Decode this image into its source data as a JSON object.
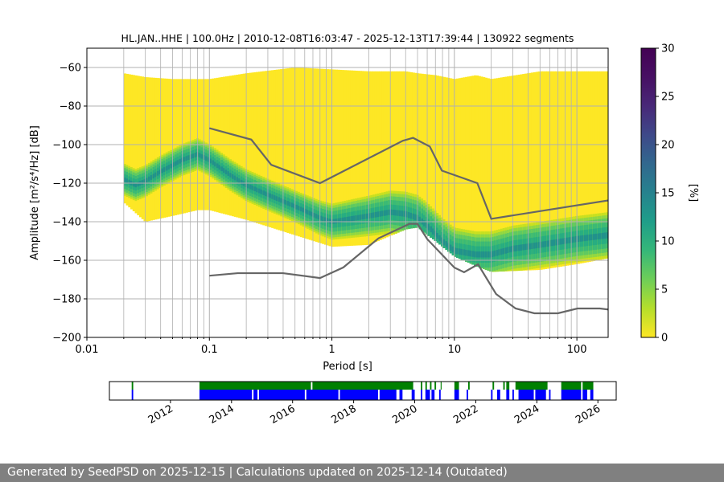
{
  "chart_data": [
    {
      "type": "heatmap",
      "title": "HL.JAN..HHE | 100.0Hz | 2010-12-08T16:03:47 - 2025-12-13T17:39:44 | 130922 segments",
      "xlabel": "Period [s]",
      "ylabel": "Amplitude [m²/s⁴/Hz] [dB]",
      "x_scale": "log",
      "xlim": [
        0.01,
        180
      ],
      "ylim": [
        -200,
        -50
      ],
      "x_ticks": [
        0.01,
        0.1,
        1,
        10,
        100
      ],
      "x_tick_labels": [
        "0.01",
        "0.1",
        "1",
        "10",
        "100"
      ],
      "y_ticks": [
        -60,
        -80,
        -100,
        -120,
        -140,
        -160,
        -180,
        -200
      ],
      "y_tick_labels": [
        "−60",
        "−80",
        "−100",
        "−120",
        "−140",
        "−160",
        "−180",
        "−200"
      ],
      "grid": true,
      "density_envelope": {
        "period": [
          0.02,
          0.03,
          0.05,
          0.08,
          0.1,
          0.2,
          0.5,
          1,
          2,
          4,
          5,
          7,
          10,
          15,
          20,
          50,
          100,
          180
        ],
        "upper_db": [
          -63,
          -65,
          -66,
          -66,
          -66,
          -63,
          -60,
          -61,
          -62,
          -62,
          -63,
          -64,
          -66,
          -64,
          -66,
          -62,
          -62,
          -62
        ],
        "lower_db": [
          -130,
          -140,
          -137,
          -134,
          -134,
          -139,
          -147,
          -153,
          -152,
          -144,
          -143,
          -150,
          -158,
          -163,
          -166,
          -165,
          -162,
          -159
        ]
      },
      "mode": {
        "period": [
          0.02,
          0.025,
          0.03,
          0.04,
          0.06,
          0.08,
          0.1,
          0.15,
          0.2,
          0.3,
          0.5,
          0.8,
          1,
          2,
          3,
          4,
          5,
          6,
          8,
          10,
          15,
          20,
          30,
          50,
          100,
          180
        ],
        "db": [
          -118,
          -121,
          -119,
          -114,
          -108,
          -105,
          -108,
          -116,
          -121,
          -126,
          -132,
          -138,
          -140,
          -137,
          -135,
          -136,
          -138,
          -142,
          -150,
          -155,
          -157,
          -157,
          -154,
          -152,
          -149,
          -147
        ]
      },
      "noise_models": [
        {
          "period": [
            0.1,
            0.22,
            0.32,
            0.8,
            3.8,
            4.6,
            6.3,
            7.9,
            15.4,
            20,
            354.8
          ],
          "db": [
            -91.5,
            -97.4,
            -110.5,
            -120,
            -98,
            -96.5,
            -101,
            -113.5,
            -120,
            -138.5,
            -126
          ]
        },
        {
          "period": [
            0.1,
            0.17,
            0.4,
            0.8,
            1.24,
            2.4,
            4.3,
            5,
            6,
            10,
            12,
            15.6,
            21.9,
            31.6,
            45,
            70,
            101,
            154,
            328.6
          ],
          "db": [
            -168,
            -166.7,
            -166.7,
            -169.2,
            -163.7,
            -148.6,
            -141.1,
            -141.1,
            -149,
            -163.8,
            -166.2,
            -162.1,
            -177.5,
            -185,
            -187.5,
            -187.5,
            -185,
            -185,
            -187.5
          ]
        }
      ],
      "colorbar": {
        "label": "[%]",
        "range": [
          0,
          30
        ],
        "ticks": [
          0,
          5,
          10,
          15,
          20,
          25,
          30
        ],
        "tick_labels": [
          "0",
          "5",
          "10",
          "15",
          "20",
          "25",
          "30"
        ],
        "colormap": "viridis_r"
      }
    },
    {
      "type": "timeline",
      "x_ticks": [
        "2012",
        "2014",
        "2016",
        "2018",
        "2020",
        "2022",
        "2024",
        "2026"
      ],
      "xlim": [
        2010.0,
        2026.6
      ],
      "data_coverage_color": "#0000ff",
      "psd_coverage_color": "#008000",
      "data_coverage": [
        [
          2010.73,
          2010.78
        ],
        [
          2012.95,
          2014.67
        ],
        [
          2014.72,
          2014.85
        ],
        [
          2014.9,
          2016.4
        ],
        [
          2016.45,
          2017.5
        ],
        [
          2017.55,
          2018.8
        ],
        [
          2018.85,
          2019.4
        ],
        [
          2019.5,
          2019.6
        ],
        [
          2019.9,
          2020.0
        ],
        [
          2020.2,
          2020.25
        ],
        [
          2020.35,
          2020.5
        ],
        [
          2020.55,
          2020.65
        ],
        [
          2020.8,
          2020.85
        ],
        [
          2021.3,
          2021.45
        ],
        [
          2021.7,
          2021.75
        ],
        [
          2022.5,
          2022.55
        ],
        [
          2022.7,
          2022.8
        ],
        [
          2023.0,
          2023.1
        ],
        [
          2023.2,
          2023.25
        ],
        [
          2023.4,
          2023.9
        ],
        [
          2023.95,
          2024.3
        ],
        [
          2024.4,
          2024.45
        ],
        [
          2024.8,
          2025.45
        ],
        [
          2025.5,
          2025.65
        ],
        [
          2025.75,
          2025.85
        ]
      ],
      "psd_coverage": [
        [
          2010.73,
          2010.78
        ],
        [
          2012.95,
          2016.6
        ],
        [
          2016.65,
          2019.95
        ],
        [
          2020.2,
          2020.25
        ],
        [
          2020.35,
          2020.4
        ],
        [
          2020.5,
          2020.55
        ],
        [
          2020.65,
          2020.7
        ],
        [
          2020.85,
          2020.88
        ],
        [
          2021.3,
          2021.45
        ],
        [
          2021.75,
          2021.8
        ],
        [
          2022.55,
          2022.6
        ],
        [
          2022.9,
          2022.95
        ],
        [
          2023.0,
          2023.1
        ],
        [
          2023.3,
          2024.35
        ],
        [
          2024.8,
          2025.45
        ],
        [
          2025.5,
          2025.85
        ]
      ]
    }
  ],
  "footer": {
    "text": "Generated by SeedPSD on 2025-12-15 | Calculations updated on 2025-12-14 (Outdated)"
  }
}
